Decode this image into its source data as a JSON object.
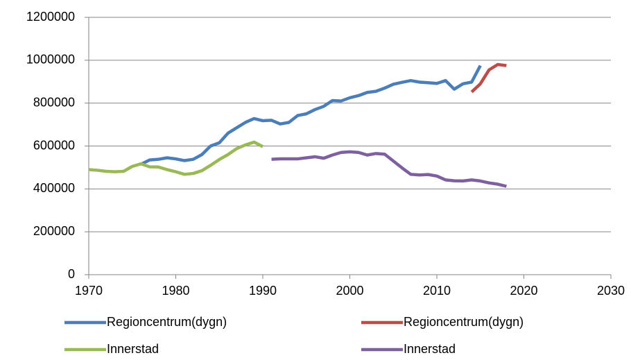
{
  "chart_data": {
    "type": "line",
    "xlim": [
      1970,
      2030
    ],
    "xticks": [
      1970,
      1980,
      1990,
      2000,
      2010,
      2020,
      2030
    ],
    "ylim": [
      0,
      1200000
    ],
    "yticks": [
      0,
      200000,
      400000,
      600000,
      800000,
      1000000,
      1200000
    ],
    "grid": true,
    "series": [
      {
        "name": "Regioncentrum(dygn)",
        "color": "#4a7ebb",
        "x": [
          1976,
          1977,
          1978,
          1979,
          1980,
          1981,
          1982,
          1983,
          1984,
          1985,
          1986,
          1987,
          1988,
          1989,
          1990,
          1991,
          1992,
          1993,
          1994,
          1995,
          1996,
          1997,
          1998,
          1999,
          2000,
          2001,
          2002,
          2003,
          2004,
          2005,
          2006,
          2007,
          2008,
          2009,
          2010,
          2011,
          2012,
          2013,
          2014,
          2015
        ],
        "values": [
          515000,
          535000,
          538000,
          545000,
          540000,
          532000,
          538000,
          560000,
          600000,
          615000,
          660000,
          685000,
          710000,
          728000,
          718000,
          720000,
          703000,
          710000,
          742000,
          750000,
          770000,
          785000,
          812000,
          810000,
          825000,
          835000,
          850000,
          855000,
          870000,
          888000,
          897000,
          905000,
          898000,
          895000,
          892000,
          905000,
          865000,
          890000,
          898000,
          975000
        ]
      },
      {
        "name": "Regioncentrum(dygn)",
        "color": "#be4b48",
        "x": [
          2014,
          2015,
          2016,
          2017,
          2018
        ],
        "values": [
          852000,
          890000,
          955000,
          980000,
          975000
        ]
      },
      {
        "name": "Innerstad",
        "color": "#98b954",
        "x": [
          1970,
          1971,
          1972,
          1973,
          1974,
          1975,
          1976,
          1977,
          1978,
          1979,
          1980,
          1981,
          1982,
          1983,
          1984,
          1985,
          1986,
          1987,
          1988,
          1989,
          1990
        ],
        "values": [
          490000,
          487000,
          482000,
          480000,
          482000,
          505000,
          517000,
          503000,
          502000,
          490000,
          480000,
          468000,
          472000,
          485000,
          510000,
          537000,
          560000,
          588000,
          605000,
          618000,
          597000
        ]
      },
      {
        "name": "Innerstad",
        "color": "#7d60a0",
        "x": [
          1991,
          1992,
          1993,
          1994,
          1995,
          1996,
          1997,
          1998,
          1999,
          2000,
          2001,
          2002,
          2003,
          2004,
          2005,
          2006,
          2007,
          2008,
          2009,
          2010,
          2011,
          2012,
          2013,
          2014,
          2015,
          2016,
          2017,
          2018
        ],
        "values": [
          538000,
          540000,
          540000,
          540000,
          545000,
          550000,
          543000,
          558000,
          570000,
          573000,
          570000,
          558000,
          565000,
          562000,
          530000,
          498000,
          468000,
          465000,
          467000,
          460000,
          442000,
          438000,
          437000,
          442000,
          437000,
          428000,
          422000,
          412000
        ]
      }
    ]
  }
}
